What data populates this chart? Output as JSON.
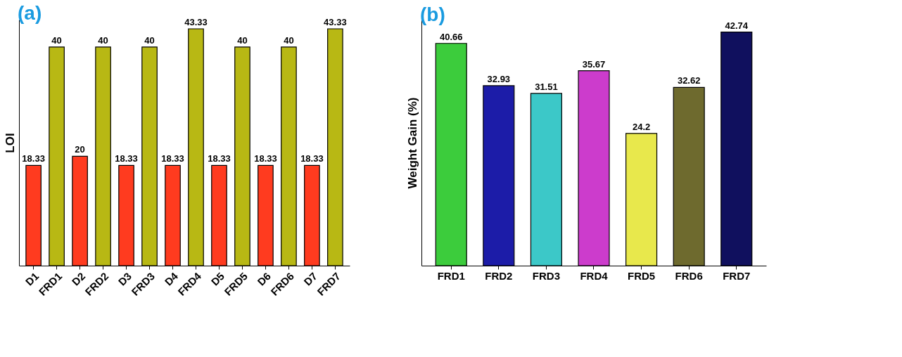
{
  "chart_data": [
    {
      "type": "bar",
      "title": "(a)",
      "ylabel": "LOI",
      "categories": [
        "D1",
        "FRD1",
        "D2",
        "FRD2",
        "D3",
        "FRD3",
        "D4",
        "FRD4",
        "D5",
        "FRD5",
        "D6",
        "FRD6",
        "D7",
        "FRD7"
      ],
      "values": [
        18.33,
        40,
        20,
        40,
        18.33,
        40,
        18.33,
        43.33,
        18.33,
        40,
        18.33,
        40,
        18.33,
        43.33
      ],
      "colors": [
        "#ff3b1f",
        "#b8b814",
        "#ff3b1f",
        "#b8b814",
        "#ff3b1f",
        "#b8b814",
        "#ff3b1f",
        "#b8b814",
        "#ff3b1f",
        "#b8b814",
        "#ff3b1f",
        "#b8b814",
        "#ff3b1f",
        "#b8b814"
      ],
      "data_labels": true,
      "tick_labels": "x",
      "grid": false
    },
    {
      "type": "bar",
      "title": "(b)",
      "ylabel": "Weight Gain (%)",
      "categories": [
        "FRD1",
        "FRD2",
        "FRD3",
        "FRD4",
        "FRD5",
        "FRD6",
        "FRD7"
      ],
      "values": [
        40.66,
        32.93,
        31.51,
        35.67,
        24.2,
        32.62,
        42.74
      ],
      "colors": [
        "#3ccc3c",
        "#1c1ca8",
        "#3cc8c8",
        "#cc3ccc",
        "#e8e84c",
        "#6e6a2e",
        "#10105e"
      ],
      "data_labels": true,
      "tick_labels": "x",
      "grid": false
    }
  ]
}
